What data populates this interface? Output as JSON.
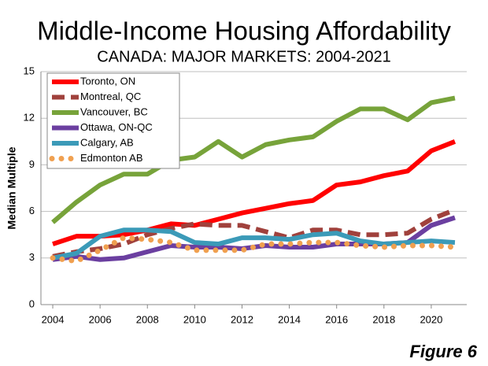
{
  "chart_data": {
    "type": "line",
    "title": "Middle-Income Housing Affordability",
    "subtitle": "CANADA: MAJOR MARKETS: 2004-2021",
    "y_label": "Median Multiple",
    "annotation": "Figure 6",
    "x": [
      2004,
      2005,
      2006,
      2007,
      2008,
      2009,
      2010,
      2011,
      2012,
      2013,
      2014,
      2015,
      2016,
      2017,
      2018,
      2019,
      2020,
      2021
    ],
    "xlim": [
      2003.5,
      2021.5
    ],
    "xticks": [
      2004,
      2006,
      2008,
      2010,
      2012,
      2014,
      2016,
      2018,
      2020
    ],
    "ylim": [
      0,
      15
    ],
    "yticks": [
      0,
      3,
      6,
      9,
      12,
      15
    ],
    "grid": true,
    "legend": "upper left",
    "series": [
      {
        "name": "Toronto, ON",
        "color": "#ff0000",
        "style": "solid",
        "values": [
          3.9,
          4.4,
          4.4,
          4.5,
          4.8,
          5.2,
          5.1,
          5.5,
          5.9,
          6.2,
          6.5,
          6.7,
          7.7,
          7.9,
          8.3,
          8.6,
          9.9,
          10.5
        ]
      },
      {
        "name": "Montreal, QC",
        "color": "#a0413c",
        "style": "dash",
        "values": [
          3.1,
          3.4,
          3.6,
          3.9,
          4.5,
          4.9,
          5.2,
          5.1,
          5.1,
          4.7,
          4.3,
          4.8,
          4.8,
          4.5,
          4.5,
          4.6,
          5.5,
          6.1
        ]
      },
      {
        "name": "Vancouver, BC",
        "color": "#77a33a",
        "style": "solid",
        "values": [
          5.3,
          6.6,
          7.7,
          8.4,
          8.4,
          9.3,
          9.5,
          10.5,
          9.5,
          10.3,
          10.6,
          10.8,
          11.8,
          12.6,
          12.6,
          11.9,
          13.0,
          13.3
        ]
      },
      {
        "name": "Ottawa, ON-QC",
        "color": "#6b3fa0",
        "style": "solid",
        "values": [
          2.9,
          3.1,
          2.9,
          3.0,
          3.4,
          3.8,
          3.7,
          3.7,
          3.6,
          3.8,
          3.7,
          3.7,
          3.9,
          3.9,
          3.9,
          4.0,
          5.1,
          5.6
        ]
      },
      {
        "name": "Calgary, AB",
        "color": "#3b9ab8",
        "style": "solid",
        "values": [
          3.0,
          3.3,
          4.4,
          4.8,
          4.8,
          4.7,
          4.0,
          3.9,
          4.3,
          4.3,
          4.2,
          4.5,
          4.6,
          4.1,
          3.9,
          4.0,
          4.1,
          4.0
        ]
      },
      {
        "name": "Edmonton AB",
        "color": "#f0a050",
        "style": "dot",
        "values": [
          3.0,
          2.8,
          3.5,
          4.3,
          4.2,
          4.0,
          3.5,
          3.5,
          3.5,
          3.9,
          3.9,
          4.0,
          4.0,
          3.8,
          3.7,
          3.8,
          3.8,
          3.7
        ]
      }
    ]
  }
}
